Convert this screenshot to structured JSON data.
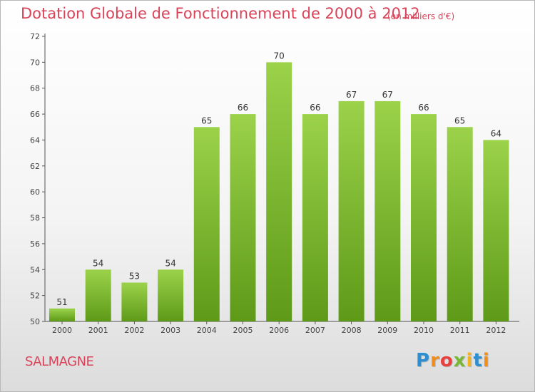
{
  "header": {
    "title": "Dotation Globale de Fonctionnement de 2000 à 2012",
    "unit": "(en milliers d'€)"
  },
  "footer": {
    "commune": "SALMAGNE",
    "logo": "Proxiti"
  },
  "colors": {
    "bar_top": "#9bd24a",
    "bar_bottom": "#5e9a18",
    "text_accent": "#d9435a"
  },
  "chart_data": {
    "type": "bar",
    "title": "Dotation Globale de Fonctionnement de 2000 à 2012",
    "subtitle": "(en milliers d'€)",
    "categories": [
      "2000",
      "2001",
      "2002",
      "2003",
      "2004",
      "2005",
      "2006",
      "2007",
      "2008",
      "2009",
      "2010",
      "2011",
      "2012"
    ],
    "values": [
      51,
      54,
      53,
      54,
      65,
      66,
      70,
      66,
      67,
      67,
      66,
      65,
      64
    ],
    "ylim": [
      50,
      72
    ],
    "yticks": [
      50,
      52,
      54,
      56,
      58,
      60,
      62,
      64,
      66,
      68,
      70,
      72
    ],
    "grid": false,
    "data_labels": true
  }
}
